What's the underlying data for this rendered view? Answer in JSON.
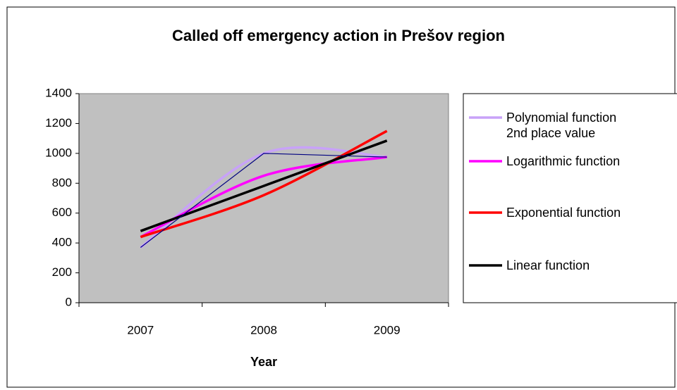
{
  "chart_data": {
    "type": "line",
    "title": "Called off emergency action in Prešov region",
    "x_label": "Year",
    "categories": [
      "2007",
      "2008",
      "2009"
    ],
    "values": [
      370,
      1000,
      975
    ],
    "color": "#000080",
    "series": [
      {
        "name": "Polynomial function\n2nd place value",
        "color": "#c8a2f8",
        "values": [
          370,
          1000,
          975
        ]
      },
      {
        "name": "Logarithmic function",
        "color": "#ff00ff",
        "values": [
          440,
          850,
          975
        ]
      },
      {
        "name": "Exponential function",
        "color": "#ff0000",
        "values": [
          440,
          720,
          1150
        ]
      },
      {
        "name": "Linear function",
        "color": "#000000",
        "values": [
          480,
          782,
          1085
        ]
      }
    ],
    "ylim": [
      0,
      1400
    ],
    "yticks": [
      0,
      200,
      400,
      600,
      800,
      1000,
      1200,
      1400
    ],
    "plot_background": "#c0c0c0",
    "legend": "right"
  }
}
